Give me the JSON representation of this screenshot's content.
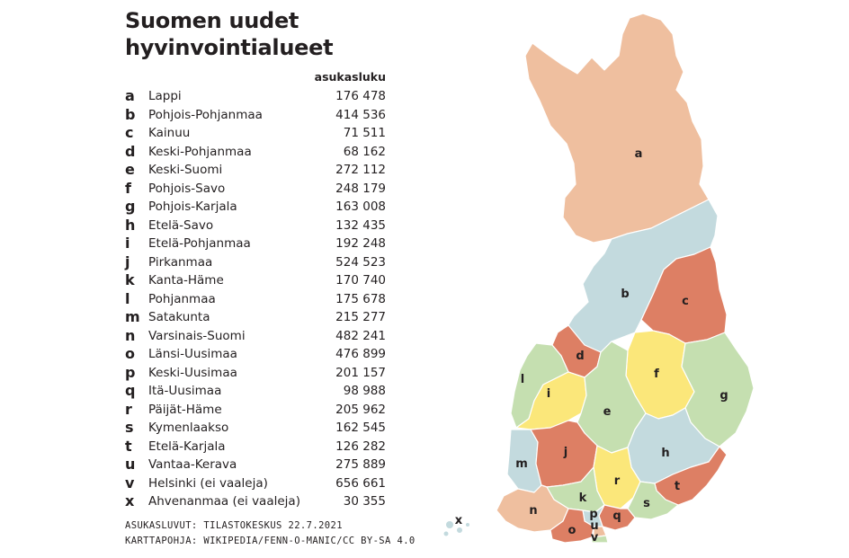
{
  "title": {
    "line1": "Suomen uudet",
    "line2": "hyvinvointialueet"
  },
  "column_header": "asukasluku",
  "regions": [
    {
      "letter": "a",
      "name": "Lappi",
      "population": "176 478"
    },
    {
      "letter": "b",
      "name": "Pohjois-Pohjanmaa",
      "population": "414 536"
    },
    {
      "letter": "c",
      "name": "Kainuu",
      "population": "71 511"
    },
    {
      "letter": "d",
      "name": "Keski-Pohjanmaa",
      "population": "68 162"
    },
    {
      "letter": "e",
      "name": "Keski-Suomi",
      "population": "272 112"
    },
    {
      "letter": "f",
      "name": "Pohjois-Savo",
      "population": "248 179"
    },
    {
      "letter": "g",
      "name": "Pohjois-Karjala",
      "population": "163 008"
    },
    {
      "letter": "h",
      "name": "Etelä-Savo",
      "population": "132 435"
    },
    {
      "letter": "i",
      "name": "Etelä-Pohjanmaa",
      "population": "192 248"
    },
    {
      "letter": "j",
      "name": "Pirkanmaa",
      "population": "524 523"
    },
    {
      "letter": "k",
      "name": "Kanta-Häme",
      "population": "170 740"
    },
    {
      "letter": "l",
      "name": "Pohjanmaa",
      "population": "175 678"
    },
    {
      "letter": "m",
      "name": "Satakunta",
      "population": "215 277"
    },
    {
      "letter": "n",
      "name": "Varsinais-Suomi",
      "population": "482 241"
    },
    {
      "letter": "o",
      "name": "Länsi-Uusimaa",
      "population": "476 899"
    },
    {
      "letter": "p",
      "name": "Keski-Uusimaa",
      "population": "201 157"
    },
    {
      "letter": "q",
      "name": "Itä-Uusimaa",
      "population": "98 988"
    },
    {
      "letter": "r",
      "name": "Päijät-Häme",
      "population": "205 962"
    },
    {
      "letter": "s",
      "name": "Kymenlaakso",
      "population": "162 545"
    },
    {
      "letter": "t",
      "name": "Etelä-Karjala",
      "population": "126 282"
    },
    {
      "letter": "u",
      "name": "Vantaa-Kerava",
      "population": "275 889"
    },
    {
      "letter": "v",
      "name": "Helsinki (ei vaaleja)",
      "population": "656 661"
    },
    {
      "letter": "x",
      "name": "Ahvenanmaa (ei vaaleja)",
      "population": "30 355"
    }
  ],
  "sources": {
    "line1": "ASUKASLUVUT: TILASTOKESKUS 22.7.2021",
    "line2": "KARTTAPOHJA: WIKIPEDIA/FENN-O-MANIC/CC BY-SA 4.0"
  },
  "map_labels": [
    "a",
    "b",
    "c",
    "d",
    "e",
    "f",
    "g",
    "h",
    "i",
    "j",
    "k",
    "l",
    "m",
    "n",
    "o",
    "p",
    "q",
    "r",
    "s",
    "t",
    "u",
    "v",
    "x"
  ],
  "colors": {
    "text": "#231f20",
    "salmon": "#efbf9f",
    "light_blue": "#c3dade",
    "terracotta": "#dd7f64",
    "yellow": "#fbe77a",
    "light_green": "#c5dfb0"
  }
}
